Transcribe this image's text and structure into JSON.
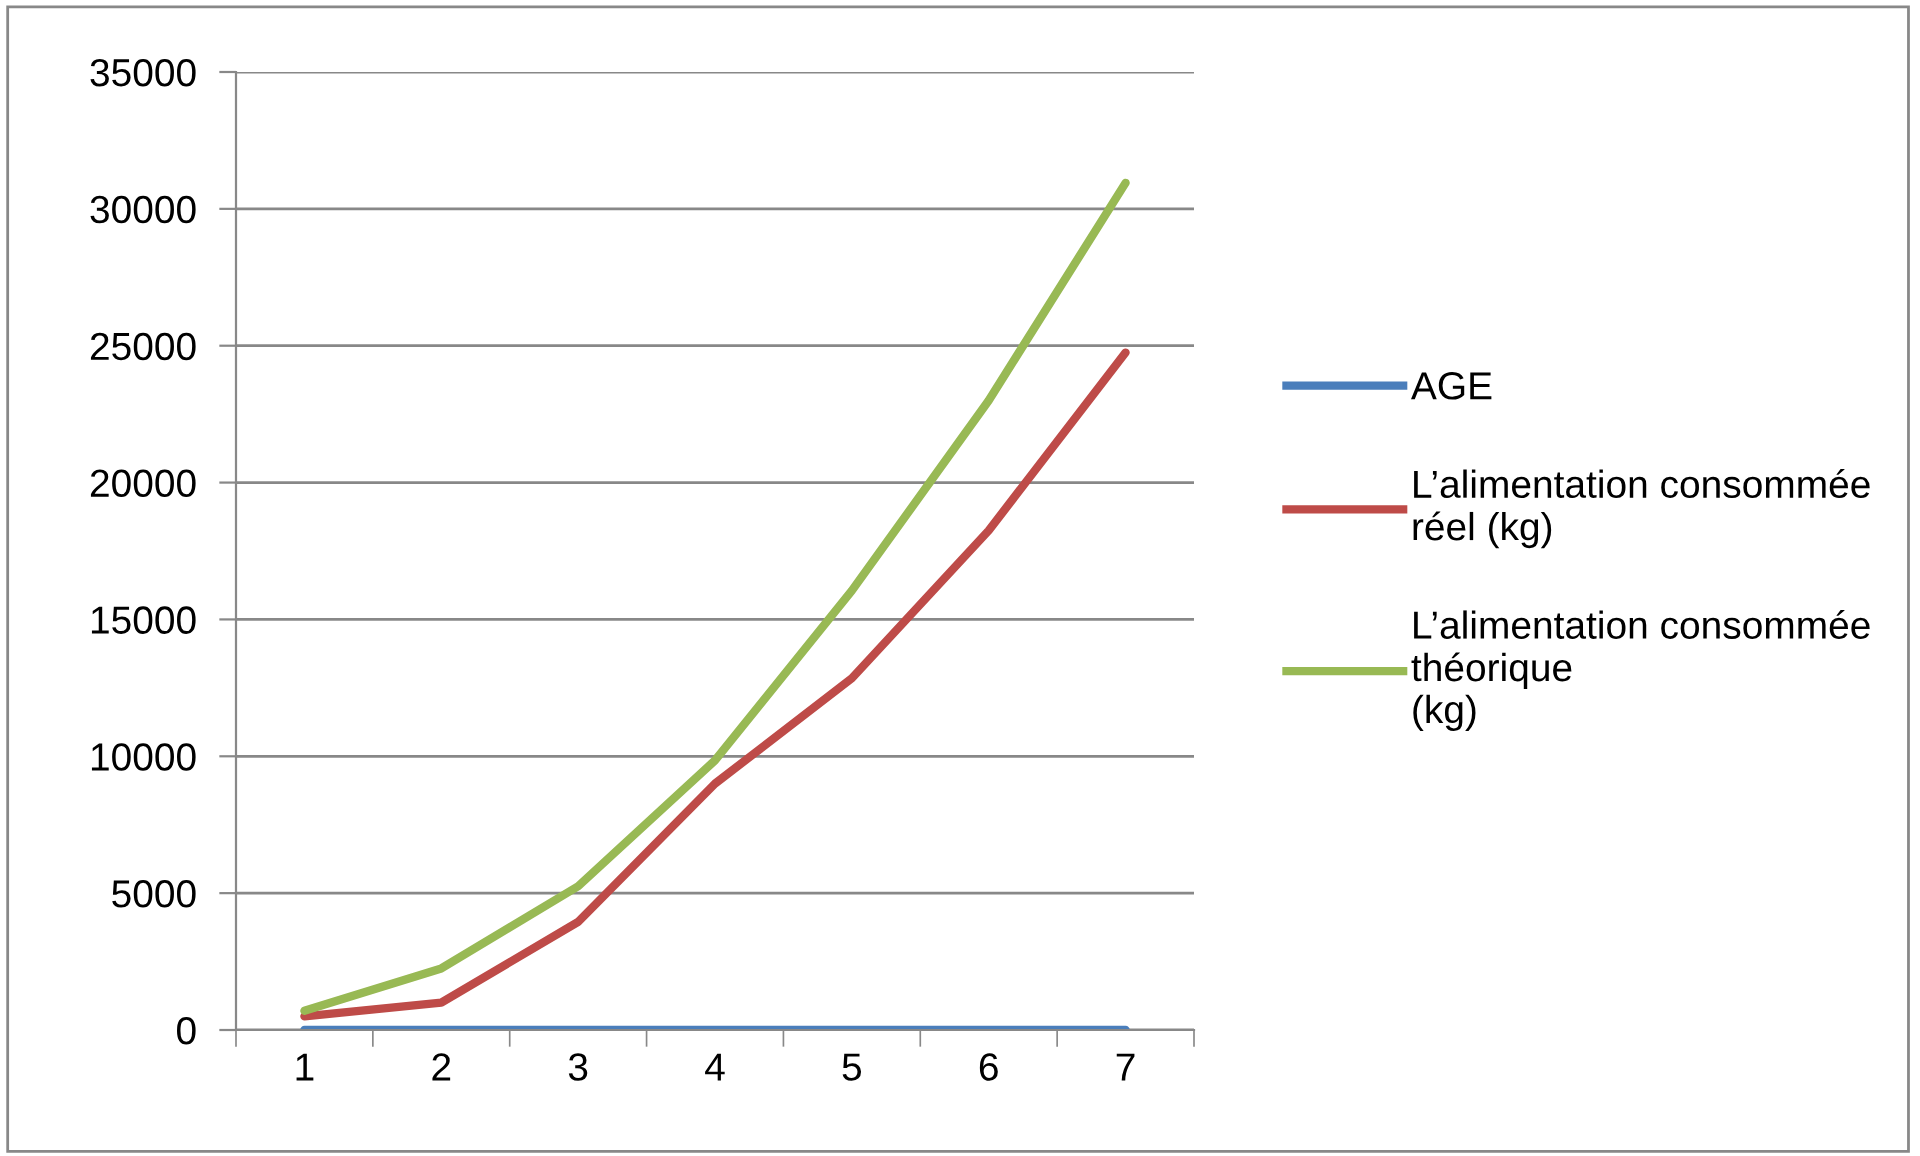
{
  "chart_data": {
    "type": "line",
    "categories": [
      "1",
      "2",
      "3",
      "4",
      "5",
      "6",
      "7"
    ],
    "series": [
      {
        "name": "AGE",
        "color": "#4a7ebb",
        "values": [
          0,
          0,
          0,
          0,
          0,
          0,
          0
        ]
      },
      {
        "name": "L’alimentation consommée réel (kg)",
        "color": "#be4b48",
        "values": [
          500,
          1000,
          3950,
          9000,
          12850,
          18250,
          24750
        ]
      },
      {
        "name": "L’alimentation consommée théorique (kg)",
        "color": "#98b954",
        "values": [
          700,
          2250,
          5250,
          9850,
          16050,
          23000,
          30950
        ]
      }
    ],
    "ylim": [
      0,
      35000
    ],
    "yticks": [
      0,
      5000,
      10000,
      15000,
      20000,
      25000,
      30000,
      35000
    ],
    "grid": "y",
    "legend": "right",
    "marker": "none",
    "line_style": "solid"
  }
}
